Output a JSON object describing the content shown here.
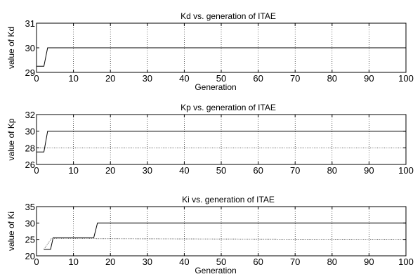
{
  "chart_data": [
    {
      "type": "line",
      "title": "Kd vs. generation of ITAE",
      "xlabel": "Generation",
      "ylabel": "value of Kd",
      "xlim": [
        0,
        100
      ],
      "ylim": [
        29,
        31
      ],
      "xticks": [
        0,
        10,
        20,
        30,
        40,
        50,
        60,
        70,
        80,
        90,
        100
      ],
      "yticks": [
        29,
        30,
        31
      ],
      "xtick_labels": [
        "0",
        "10",
        "20",
        "30",
        "40",
        "50",
        "60",
        "70",
        "80",
        "90",
        "100"
      ],
      "ytick_labels": [
        "29",
        "30",
        "31"
      ],
      "grid": true,
      "series": [
        {
          "style": "solid",
          "x": [
            0,
            2,
            3,
            100
          ],
          "y": [
            29.25,
            29.25,
            30,
            30
          ]
        }
      ]
    },
    {
      "type": "line",
      "title": "Kp vs. generation of ITAE",
      "xlabel": "",
      "ylabel": "value of Kp",
      "xlim": [
        0,
        100
      ],
      "ylim": [
        26,
        32
      ],
      "xticks": [
        0,
        10,
        20,
        30,
        40,
        50,
        60,
        70,
        80,
        90,
        100
      ],
      "yticks": [
        26,
        28,
        30,
        32
      ],
      "xtick_labels": [
        "0",
        "10",
        "20",
        "30",
        "40",
        "50",
        "60",
        "70",
        "80",
        "90",
        "100"
      ],
      "ytick_labels": [
        "26",
        "28",
        "30",
        "32"
      ],
      "grid": true,
      "series": [
        {
          "style": "solid",
          "x": [
            0,
            2,
            3,
            100
          ],
          "y": [
            27.5,
            27.5,
            30,
            30
          ]
        },
        {
          "style": "dotted",
          "x": [
            0,
            100
          ],
          "y": [
            28,
            28
          ]
        }
      ]
    },
    {
      "type": "line",
      "title": "Ki vs. generation of ITAE",
      "xlabel": "Generation",
      "ylabel": "value of Ki",
      "xlim": [
        0,
        100
      ],
      "ylim": [
        20,
        35
      ],
      "xticks": [
        0,
        10,
        20,
        30,
        40,
        50,
        60,
        70,
        80,
        90,
        100
      ],
      "yticks": [
        20,
        25,
        30,
        35
      ],
      "xtick_labels": [
        "0",
        "10",
        "20",
        "30",
        "40",
        "50",
        "60",
        "70",
        "80",
        "90",
        "100"
      ],
      "ytick_labels": [
        "20",
        "25",
        "30",
        "35"
      ],
      "grid": true,
      "series": [
        {
          "style": "solid",
          "x": [
            2,
            3.8,
            4.5,
            15.5,
            16.5,
            100
          ],
          "y": [
            22,
            22,
            25.5,
            25.5,
            30,
            30
          ]
        },
        {
          "style": "dotted",
          "x": [
            2,
            4,
            15,
            100
          ],
          "y": [
            22,
            25.2,
            25.2,
            25
          ]
        }
      ]
    }
  ]
}
